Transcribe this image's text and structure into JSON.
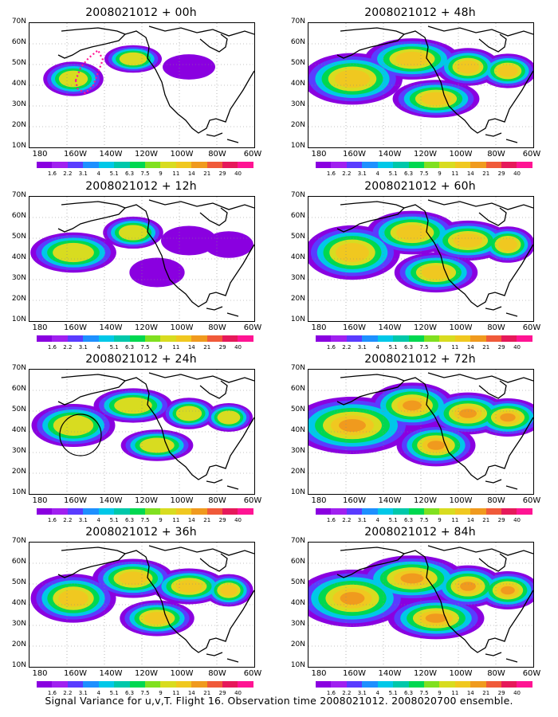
{
  "caption": "Signal Variance for u,v,T. Flight 16. Observation time 2008021012. 2008020700 ensemble.",
  "lat_labels": [
    "70N",
    "60N",
    "50N",
    "40N",
    "30N",
    "20N",
    "10N"
  ],
  "lon_labels": [
    "180",
    "160W",
    "140W",
    "120W",
    "100W",
    "80W",
    "60W"
  ],
  "colorbar_labels": [
    "1.6",
    "2.2",
    "3.1",
    "4",
    "5.1",
    "6.3",
    "7.5",
    "9",
    "11",
    "14",
    "21",
    "29",
    "40"
  ],
  "colors": [
    "#8a00e0",
    "#a020f0",
    "#5a3cff",
    "#1e90ff",
    "#00c8e8",
    "#00c8aa",
    "#00d850",
    "#80e020",
    "#d8dc20",
    "#f0c820",
    "#f09a1e",
    "#f05a3a",
    "#e6195a",
    "#ff1493"
  ],
  "panels": [
    {
      "title": "2008021012 + 00h",
      "annotation": "flight-track"
    },
    {
      "title": "2008021012 + 48h",
      "annotation": ""
    },
    {
      "title": "2008021012 + 12h",
      "annotation": ""
    },
    {
      "title": "2008021012 + 60h",
      "annotation": ""
    },
    {
      "title": "2008021012 + 24h",
      "annotation": "circle"
    },
    {
      "title": "2008021012 + 72h",
      "annotation": ""
    },
    {
      "title": "2008021012 + 36h",
      "annotation": ""
    },
    {
      "title": "2008021012 + 84h",
      "annotation": ""
    }
  ]
}
